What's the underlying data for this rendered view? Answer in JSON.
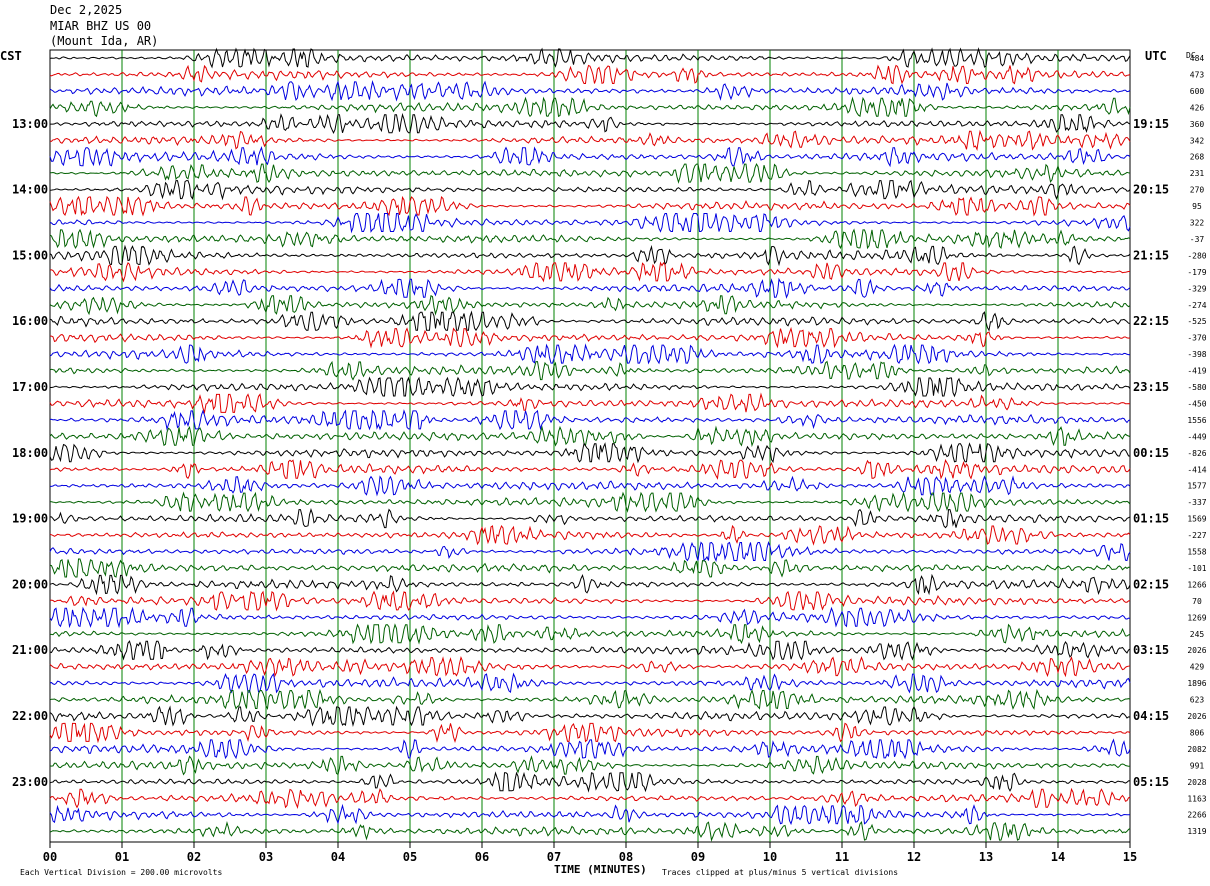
{
  "header": {
    "date": "Dec 2,2025",
    "station": "MIAR BHZ US 00",
    "location": "(Mount Ida, AR)"
  },
  "left_axis_label": "CST",
  "right_axis_label": "UTC",
  "dc_label": "DC",
  "footer": {
    "scale_note": "Each Vertical Division =  200.00 microvolts",
    "xlabel": "TIME (MINUTES)",
    "clip_note": "Traces clipped at plus/minus 5 vertical divisions"
  },
  "colors": {
    "black": "#000000",
    "red": "#e00000",
    "blue": "#0000e0",
    "green": "#006000",
    "grid": "#008000"
  },
  "chart_data": {
    "type": "line",
    "title": "",
    "xlabel": "TIME (MINUTES)",
    "x_ticks": [
      "00",
      "01",
      "02",
      "03",
      "04",
      "05",
      "06",
      "07",
      "08",
      "09",
      "10",
      "11",
      "12",
      "13",
      "14",
      "15"
    ],
    "xlim": [
      0,
      15
    ],
    "trace_count": 48,
    "trace_colors_cycle": [
      "black",
      "red",
      "blue",
      "green"
    ],
    "left_time_labels": [
      {
        "trace": 4,
        "label": "13:00"
      },
      {
        "trace": 8,
        "label": "14:00"
      },
      {
        "trace": 12,
        "label": "15:00"
      },
      {
        "trace": 16,
        "label": "16:00"
      },
      {
        "trace": 20,
        "label": "17:00"
      },
      {
        "trace": 24,
        "label": "18:00"
      },
      {
        "trace": 28,
        "label": "19:00"
      },
      {
        "trace": 32,
        "label": "20:00"
      },
      {
        "trace": 36,
        "label": "21:00"
      },
      {
        "trace": 40,
        "label": "22:00"
      },
      {
        "trace": 44,
        "label": "23:00"
      }
    ],
    "right_time_labels": [
      {
        "trace": 4,
        "label": "19:15"
      },
      {
        "trace": 8,
        "label": "20:15"
      },
      {
        "trace": 12,
        "label": "21:15"
      },
      {
        "trace": 16,
        "label": "22:15"
      },
      {
        "trace": 20,
        "label": "23:15"
      },
      {
        "trace": 24,
        "label": "00:15"
      },
      {
        "trace": 28,
        "label": "01:15"
      },
      {
        "trace": 32,
        "label": "02:15"
      },
      {
        "trace": 36,
        "label": "03:15"
      },
      {
        "trace": 40,
        "label": "04:15"
      },
      {
        "trace": 44,
        "label": "05:15"
      }
    ],
    "dc_offsets": [
      "484",
      "473",
      "600",
      "426",
      "360",
      "342",
      "268",
      "231",
      "270",
      "95",
      "322",
      "-37",
      "-280",
      "-179",
      "-329",
      "-274",
      "-525",
      "-370",
      "-398",
      "-419",
      "-580",
      "-450",
      "1556",
      "-449",
      "-826",
      "-414",
      "1577",
      "-337",
      "1569",
      "-227",
      "1558",
      "-101",
      "1266",
      "70",
      "1269",
      "245",
      "2026",
      "429",
      "1896",
      "623",
      "2026",
      "806",
      "2082",
      "991",
      "2028",
      "1163",
      "2266",
      "1319"
    ]
  }
}
